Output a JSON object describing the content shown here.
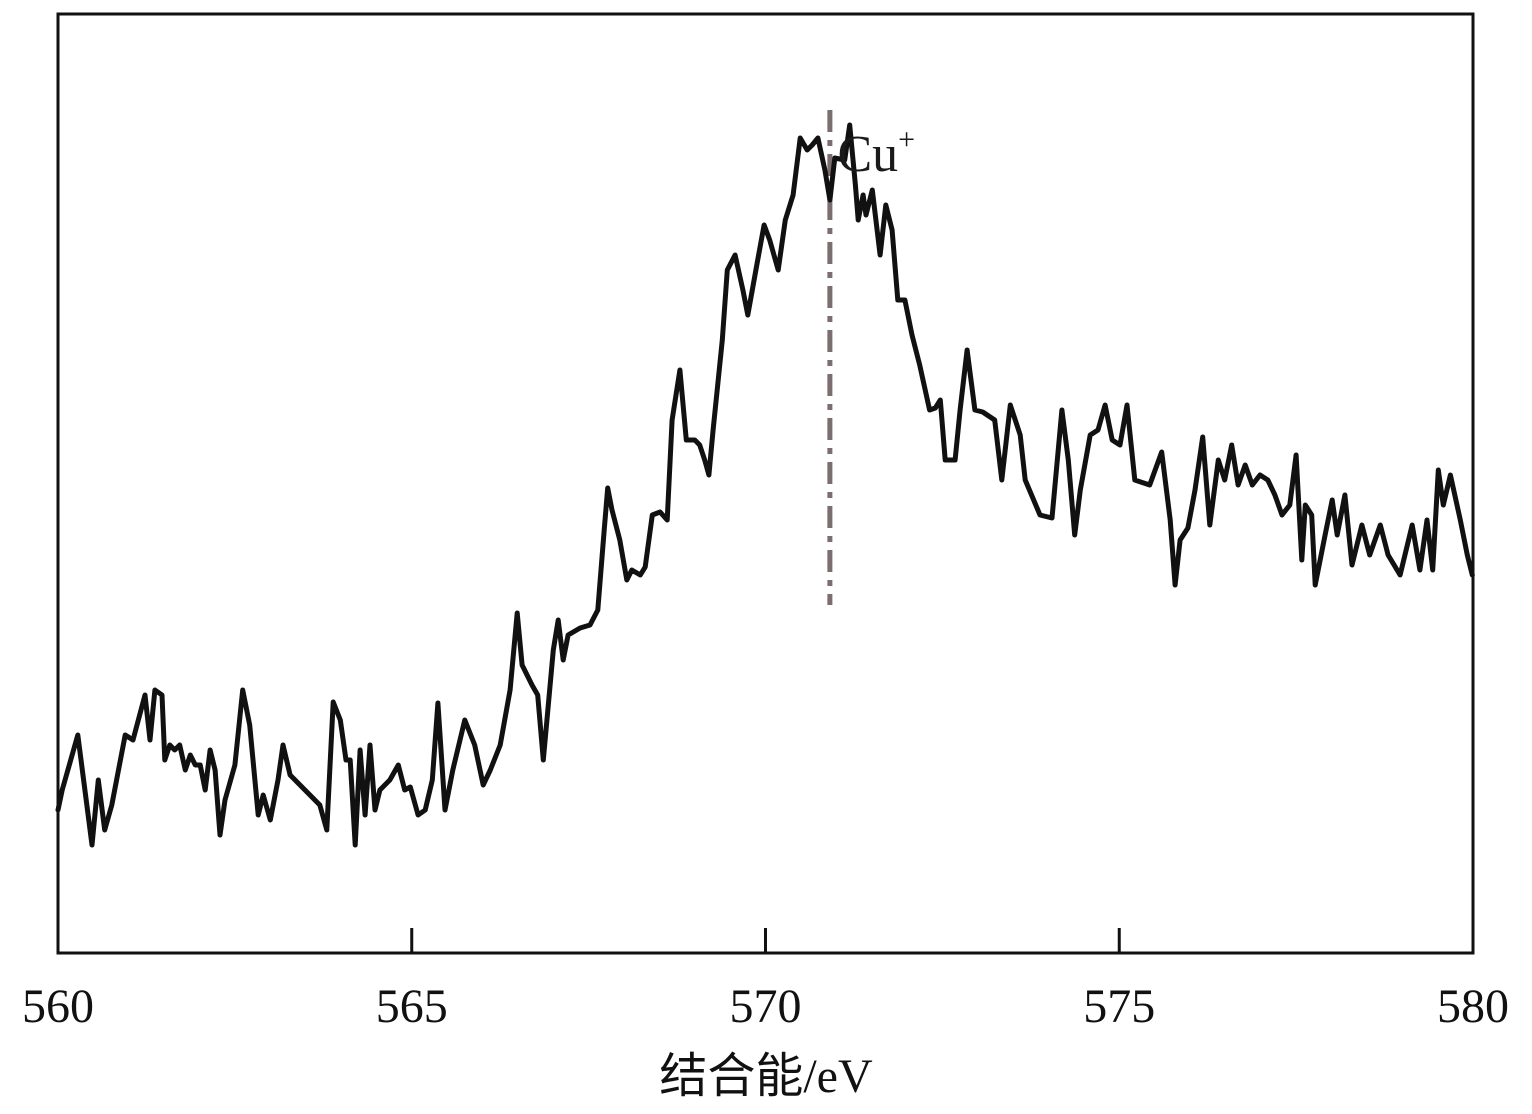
{
  "chart_data": {
    "type": "line",
    "title": "",
    "xlabel": "结合能/eV",
    "ylabel": "",
    "xlim": [
      560,
      580
    ],
    "ylim": [
      0,
      93.9
    ],
    "xticks": [
      560,
      565,
      570,
      575,
      580
    ],
    "xtick_labels": [
      "560",
      "565",
      "570",
      "575",
      "580"
    ],
    "yticks_shown": false,
    "grid": false,
    "line_color": "#111111",
    "reference_line": {
      "x": 570.91,
      "y_range": [
        34.8,
        84.3
      ],
      "style": "dash-dot",
      "color": "#7a6e6e"
    },
    "annotations": [
      {
        "text": "Cu",
        "superscript": "+",
        "x": 571.3,
        "y": 80
      }
    ],
    "series": [
      {
        "points": [
          [
            560.0,
            14.3
          ],
          [
            560.06,
            16.3
          ],
          [
            560.28,
            21.8
          ],
          [
            560.48,
            10.8
          ],
          [
            560.57,
            17.3
          ],
          [
            560.66,
            12.3
          ],
          [
            560.76,
            14.8
          ],
          [
            560.95,
            21.8
          ],
          [
            561.06,
            21.3
          ],
          [
            561.23,
            25.8
          ],
          [
            561.3,
            21.3
          ],
          [
            561.37,
            26.3
          ],
          [
            561.47,
            25.8
          ],
          [
            561.51,
            19.3
          ],
          [
            561.58,
            20.8
          ],
          [
            561.65,
            20.3
          ],
          [
            561.72,
            20.8
          ],
          [
            561.8,
            18.3
          ],
          [
            561.87,
            19.8
          ],
          [
            561.94,
            18.8
          ],
          [
            562.01,
            18.8
          ],
          [
            562.08,
            16.3
          ],
          [
            562.15,
            20.3
          ],
          [
            562.22,
            18.3
          ],
          [
            562.29,
            11.8
          ],
          [
            562.36,
            15.3
          ],
          [
            562.5,
            18.8
          ],
          [
            562.61,
            26.3
          ],
          [
            562.71,
            22.8
          ],
          [
            562.83,
            13.8
          ],
          [
            562.9,
            15.8
          ],
          [
            563.0,
            13.3
          ],
          [
            563.11,
            17.3
          ],
          [
            563.18,
            20.8
          ],
          [
            563.28,
            17.8
          ],
          [
            563.42,
            16.8
          ],
          [
            563.56,
            15.8
          ],
          [
            563.7,
            14.8
          ],
          [
            563.8,
            12.3
          ],
          [
            563.89,
            25.1
          ],
          [
            563.99,
            23.3
          ],
          [
            564.07,
            19.3
          ],
          [
            564.13,
            19.3
          ],
          [
            564.2,
            10.8
          ],
          [
            564.27,
            20.3
          ],
          [
            564.34,
            13.8
          ],
          [
            564.41,
            20.8
          ],
          [
            564.48,
            14.3
          ],
          [
            564.55,
            16.3
          ],
          [
            564.69,
            17.3
          ],
          [
            564.81,
            18.8
          ],
          [
            564.9,
            16.3
          ],
          [
            564.98,
            16.6
          ],
          [
            565.09,
            13.8
          ],
          [
            565.19,
            14.3
          ],
          [
            565.29,
            17.3
          ],
          [
            565.37,
            25.0
          ],
          [
            565.47,
            14.3
          ],
          [
            565.58,
            18.3
          ],
          [
            565.75,
            23.3
          ],
          [
            565.89,
            20.8
          ],
          [
            566.01,
            16.8
          ],
          [
            566.11,
            18.3
          ],
          [
            566.25,
            20.8
          ],
          [
            566.39,
            26.3
          ],
          [
            566.49,
            34.0
          ],
          [
            566.56,
            28.8
          ],
          [
            566.7,
            26.8
          ],
          [
            566.78,
            25.8
          ],
          [
            566.86,
            19.3
          ],
          [
            566.93,
            24.8
          ],
          [
            567.0,
            30.3
          ],
          [
            567.07,
            33.3
          ],
          [
            567.14,
            29.3
          ],
          [
            567.21,
            31.8
          ],
          [
            567.38,
            32.5
          ],
          [
            567.52,
            32.8
          ],
          [
            567.63,
            34.3
          ],
          [
            567.72,
            42.3
          ],
          [
            567.77,
            46.5
          ],
          [
            567.83,
            44.3
          ],
          [
            567.94,
            41.3
          ],
          [
            568.04,
            37.3
          ],
          [
            568.11,
            38.3
          ],
          [
            568.23,
            37.8
          ],
          [
            568.3,
            38.6
          ],
          [
            568.4,
            43.8
          ],
          [
            568.51,
            44.1
          ],
          [
            568.61,
            43.3
          ],
          [
            568.68,
            53.3
          ],
          [
            568.79,
            58.3
          ],
          [
            568.88,
            51.3
          ],
          [
            569.0,
            51.3
          ],
          [
            569.07,
            50.8
          ],
          [
            569.14,
            49.3
          ],
          [
            569.2,
            47.8
          ],
          [
            569.26,
            52.3
          ],
          [
            569.39,
            61.3
          ],
          [
            569.46,
            68.3
          ],
          [
            569.57,
            69.8
          ],
          [
            569.68,
            66.3
          ],
          [
            569.75,
            63.8
          ],
          [
            569.89,
            69.3
          ],
          [
            569.98,
            72.8
          ],
          [
            570.06,
            71.3
          ],
          [
            570.18,
            68.3
          ],
          [
            570.28,
            73.3
          ],
          [
            570.39,
            75.8
          ],
          [
            570.49,
            81.5
          ],
          [
            570.59,
            80.3
          ],
          [
            570.66,
            80.8
          ],
          [
            570.74,
            81.5
          ],
          [
            570.84,
            78.3
          ],
          [
            570.91,
            75.3
          ],
          [
            570.98,
            79.5
          ],
          [
            571.12,
            79.3
          ],
          [
            571.19,
            82.8
          ],
          [
            571.27,
            76.8
          ],
          [
            571.31,
            73.3
          ],
          [
            571.38,
            75.8
          ],
          [
            571.42,
            73.8
          ],
          [
            571.51,
            76.3
          ],
          [
            571.62,
            69.8
          ],
          [
            571.7,
            74.8
          ],
          [
            571.79,
            72.3
          ],
          [
            571.87,
            65.3
          ],
          [
            571.97,
            65.3
          ],
          [
            572.07,
            61.8
          ],
          [
            572.18,
            58.8
          ],
          [
            572.32,
            54.3
          ],
          [
            572.4,
            54.5
          ],
          [
            572.47,
            55.3
          ],
          [
            572.54,
            49.3
          ],
          [
            572.68,
            49.3
          ],
          [
            572.75,
            54.3
          ],
          [
            572.85,
            60.3
          ],
          [
            572.96,
            54.3
          ],
          [
            573.07,
            54.1
          ],
          [
            573.24,
            53.3
          ],
          [
            573.34,
            47.3
          ],
          [
            573.46,
            54.8
          ],
          [
            573.6,
            51.8
          ],
          [
            573.67,
            47.3
          ],
          [
            573.88,
            43.8
          ],
          [
            574.05,
            43.5
          ],
          [
            574.19,
            54.3
          ],
          [
            574.28,
            49.3
          ],
          [
            574.37,
            41.8
          ],
          [
            574.45,
            46.3
          ],
          [
            574.59,
            51.8
          ],
          [
            574.7,
            52.3
          ],
          [
            574.8,
            54.8
          ],
          [
            574.9,
            51.3
          ],
          [
            575.01,
            50.8
          ],
          [
            575.11,
            54.8
          ],
          [
            575.22,
            47.3
          ],
          [
            575.43,
            46.8
          ],
          [
            575.6,
            50.1
          ],
          [
            575.72,
            43.3
          ],
          [
            575.79,
            36.8
          ],
          [
            575.86,
            41.3
          ],
          [
            575.97,
            42.5
          ],
          [
            576.07,
            46.3
          ],
          [
            576.18,
            51.6
          ],
          [
            576.28,
            42.8
          ],
          [
            576.4,
            49.3
          ],
          [
            576.49,
            47.3
          ],
          [
            576.59,
            50.8
          ],
          [
            576.68,
            46.8
          ],
          [
            576.78,
            48.8
          ],
          [
            576.88,
            46.8
          ],
          [
            576.99,
            47.8
          ],
          [
            577.1,
            47.3
          ],
          [
            577.2,
            45.8
          ],
          [
            577.3,
            43.8
          ],
          [
            577.41,
            44.8
          ],
          [
            577.5,
            49.8
          ],
          [
            577.58,
            39.3
          ],
          [
            577.63,
            44.8
          ],
          [
            577.72,
            43.8
          ],
          [
            577.77,
            36.8
          ],
          [
            577.91,
            41.8
          ],
          [
            578.01,
            45.3
          ],
          [
            578.08,
            41.8
          ],
          [
            578.19,
            45.8
          ],
          [
            578.29,
            38.8
          ],
          [
            578.43,
            42.8
          ],
          [
            578.54,
            39.8
          ],
          [
            578.69,
            42.8
          ],
          [
            578.8,
            39.8
          ],
          [
            578.97,
            37.8
          ],
          [
            579.14,
            42.8
          ],
          [
            579.25,
            38.3
          ],
          [
            579.35,
            43.3
          ],
          [
            579.43,
            38.3
          ],
          [
            579.51,
            48.3
          ],
          [
            579.58,
            44.8
          ],
          [
            579.68,
            47.8
          ],
          [
            579.82,
            43.3
          ],
          [
            579.92,
            39.8
          ],
          [
            579.99,
            37.8
          ]
        ]
      }
    ]
  }
}
